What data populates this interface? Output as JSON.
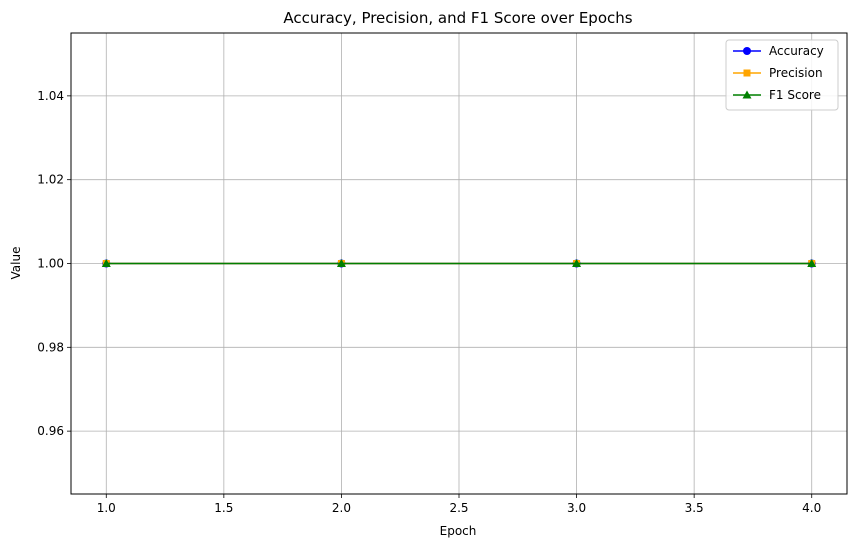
{
  "chart_data": {
    "type": "line",
    "title": "Accuracy, Precision, and F1 Score over Epochs",
    "xlabel": "Epoch",
    "ylabel": "Value",
    "x": [
      1.0,
      2.0,
      3.0,
      4.0
    ],
    "xlim": [
      0.85,
      4.15
    ],
    "ylim": [
      0.945,
      1.055
    ],
    "xticks": [
      1.0,
      1.5,
      2.0,
      2.5,
      3.0,
      3.5,
      4.0
    ],
    "xtick_labels": [
      "1.0",
      "1.5",
      "2.0",
      "2.5",
      "3.0",
      "3.5",
      "4.0"
    ],
    "yticks": [
      0.96,
      0.98,
      1.0,
      1.02,
      1.04
    ],
    "ytick_labels": [
      "0.96",
      "0.98",
      "1.00",
      "1.02",
      "1.04"
    ],
    "grid": true,
    "legend_position": "top-right",
    "series": [
      {
        "name": "Accuracy",
        "values": [
          1.0,
          1.0,
          1.0,
          1.0
        ],
        "color": "#0000ff",
        "marker": "circle"
      },
      {
        "name": "Precision",
        "values": [
          1.0,
          1.0,
          1.0,
          1.0
        ],
        "color": "#ffa500",
        "marker": "square"
      },
      {
        "name": "F1 Score",
        "values": [
          1.0,
          1.0,
          1.0,
          1.0
        ],
        "color": "#008000",
        "marker": "triangle"
      }
    ]
  }
}
